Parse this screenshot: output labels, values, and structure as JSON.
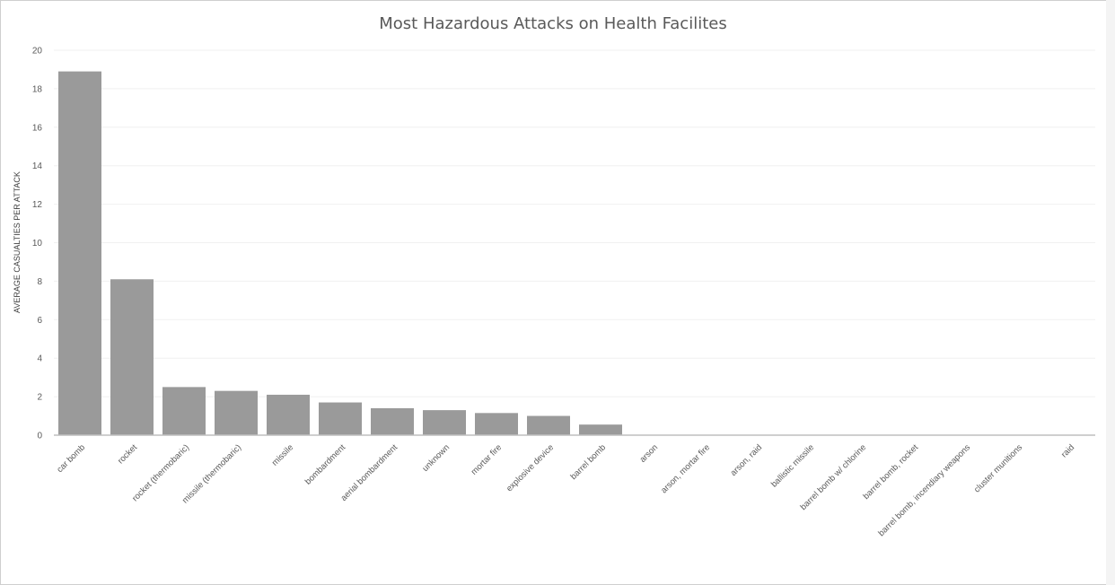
{
  "chart_data": {
    "type": "bar",
    "title": "Most Hazardous Attacks on Health Facilites",
    "xlabel": "",
    "ylabel": "AVERAGE CASUALTIES PER ATTACK",
    "ylim": [
      0,
      20
    ],
    "yticks": [
      "0",
      "2",
      "4",
      "6",
      "8",
      "10",
      "12",
      "14",
      "16",
      "18",
      "20"
    ],
    "grid": true,
    "legend": "none",
    "bar_color": "#9a9a9a",
    "categories": [
      "car bomb",
      "rocket",
      "rocket (thermobaric)",
      "missile (thermobaric)",
      "missile",
      "bombardment",
      "aerial bombardment",
      "unknown",
      "mortar fire",
      "explosive device",
      "barrel bomb",
      "arson",
      "arson, mortar fire",
      "arson, raid",
      "ballistic missile",
      "barrel bomb w/ chlorine",
      "barrel bomb, rocket",
      "barrel bomb, incendiary weapons",
      "cluster munitions",
      "raid"
    ],
    "values": [
      18.9,
      8.1,
      2.5,
      2.3,
      2.1,
      1.7,
      1.4,
      1.3,
      1.15,
      1.0,
      0.55,
      0,
      0,
      0,
      0,
      0,
      0,
      0,
      0,
      0
    ]
  }
}
